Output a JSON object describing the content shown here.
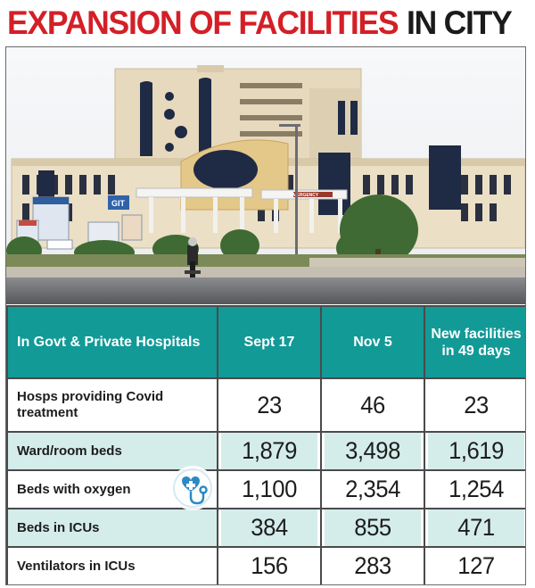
{
  "headline": {
    "part1": "EXPANSION OF FACILITIES",
    "part2": "IN CITY"
  },
  "photo": {
    "signage": [
      "GIT",
      "EMERGENCY"
    ]
  },
  "table": {
    "header_label": "In Govt & Private Hospitals",
    "columns": [
      "Sept 17",
      "Nov 5",
      "New facilities in 49 days"
    ],
    "rows": [
      {
        "label": "Hosps providing Covid treatment",
        "values": [
          "23",
          "46",
          "23"
        ]
      },
      {
        "label": "Ward/room beds",
        "values": [
          "1,879",
          "3,498",
          "1,619"
        ]
      },
      {
        "label": "Beds with oxygen",
        "values": [
          "1,100",
          "2,354",
          "1,254"
        ]
      },
      {
        "label": "Beds in ICUs",
        "values": [
          "384",
          "855",
          "471"
        ]
      },
      {
        "label": "Ventilators in ICUs",
        "values": [
          "156",
          "283",
          "127"
        ]
      }
    ]
  },
  "colors": {
    "headline_red": "#d41f26",
    "header_teal": "#129a97",
    "row_tint": "#d4edeb",
    "icon_blue": "#2b8ac4"
  },
  "icons": [
    "medical-heart-stethoscope-icon"
  ]
}
